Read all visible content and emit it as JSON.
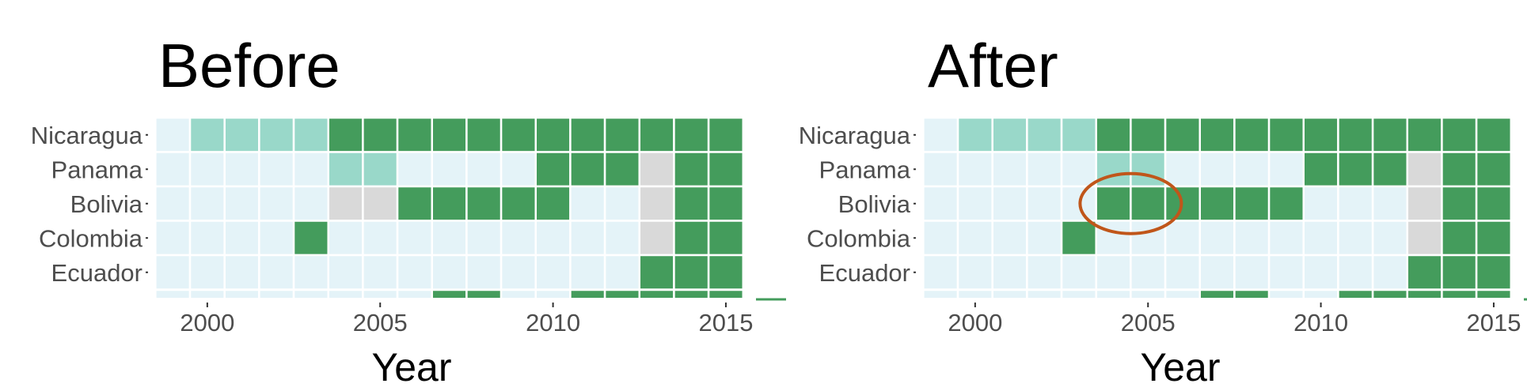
{
  "chart_data": [
    {
      "type": "heatmap",
      "title": "Before",
      "xlabel": "Year",
      "ylabel": "",
      "x": [
        1999,
        2000,
        2001,
        2002,
        2003,
        2004,
        2005,
        2006,
        2007,
        2008,
        2009,
        2010,
        2011,
        2012,
        2013,
        2014,
        2015
      ],
      "xticks": [
        "2000",
        "2005",
        "2010",
        "2015"
      ],
      "xlim": [
        1998.4,
        2016.1
      ],
      "rows": [
        "Nicaragua",
        "Panama",
        "Bolivia",
        "Colombia",
        "Ecuador"
      ],
      "status_colors": {
        "none": "#e4f3f8",
        "light": "#99d8c9",
        "full": "#449c5c",
        "missing": "#d9d9d9"
      },
      "cells": [
        [
          "none",
          "light",
          "light",
          "light",
          "light",
          "full",
          "full",
          "full",
          "full",
          "full",
          "full",
          "full",
          "full",
          "full",
          "full",
          "full",
          "full"
        ],
        [
          "none",
          "none",
          "none",
          "none",
          "none",
          "light",
          "light",
          "none",
          "none",
          "none",
          "none",
          "full",
          "full",
          "full",
          "missing",
          "full",
          "full"
        ],
        [
          "none",
          "none",
          "none",
          "none",
          "none",
          "missing",
          "missing",
          "full",
          "full",
          "full",
          "full",
          "full",
          "none",
          "none",
          "missing",
          "full",
          "full"
        ],
        [
          "none",
          "none",
          "none",
          "none",
          "full",
          "none",
          "none",
          "none",
          "none",
          "none",
          "none",
          "none",
          "none",
          "none",
          "missing",
          "full",
          "full"
        ],
        [
          "none",
          "none",
          "none",
          "none",
          "none",
          "none",
          "none",
          "none",
          "none",
          "none",
          "none",
          "none",
          "none",
          "none",
          "full",
          "full",
          "full"
        ]
      ],
      "partial_row": [
        "none",
        "none",
        "none",
        "none",
        "none",
        "none",
        "none",
        "none",
        "full",
        "full",
        "none",
        "none",
        "full",
        "full",
        "full",
        "full",
        "full"
      ]
    },
    {
      "type": "heatmap",
      "title": "After",
      "xlabel": "Year",
      "ylabel": "",
      "x": [
        1999,
        2000,
        2001,
        2002,
        2003,
        2004,
        2005,
        2006,
        2007,
        2008,
        2009,
        2010,
        2011,
        2012,
        2013,
        2014,
        2015
      ],
      "xticks": [
        "2000",
        "2005",
        "2010",
        "2015"
      ],
      "xlim": [
        1998.4,
        2016.1
      ],
      "rows": [
        "Nicaragua",
        "Panama",
        "Bolivia",
        "Colombia",
        "Ecuador"
      ],
      "status_colors": {
        "none": "#e4f3f8",
        "light": "#99d8c9",
        "full": "#449c5c",
        "missing": "#d9d9d9"
      },
      "cells": [
        [
          "none",
          "light",
          "light",
          "light",
          "light",
          "full",
          "full",
          "full",
          "full",
          "full",
          "full",
          "full",
          "full",
          "full",
          "full",
          "full",
          "full"
        ],
        [
          "none",
          "none",
          "none",
          "none",
          "none",
          "light",
          "light",
          "none",
          "none",
          "none",
          "none",
          "full",
          "full",
          "full",
          "missing",
          "full",
          "full"
        ],
        [
          "none",
          "none",
          "none",
          "none",
          "none",
          "full",
          "full",
          "full",
          "full",
          "full",
          "full",
          "none",
          "none",
          "none",
          "missing",
          "full",
          "full"
        ],
        [
          "none",
          "none",
          "none",
          "none",
          "full",
          "none",
          "none",
          "none",
          "none",
          "none",
          "none",
          "none",
          "none",
          "none",
          "missing",
          "full",
          "full"
        ],
        [
          "none",
          "none",
          "none",
          "none",
          "none",
          "none",
          "none",
          "none",
          "none",
          "none",
          "none",
          "none",
          "none",
          "none",
          "full",
          "full",
          "full"
        ]
      ],
      "partial_row": [
        "none",
        "none",
        "none",
        "none",
        "none",
        "none",
        "none",
        "none",
        "full",
        "full",
        "none",
        "none",
        "full",
        "full",
        "full",
        "full",
        "full"
      ],
      "annotation": {
        "type": "ellipse",
        "color": "#c0561a",
        "x_center": 2004.5,
        "row": "Bolivia"
      }
    }
  ]
}
